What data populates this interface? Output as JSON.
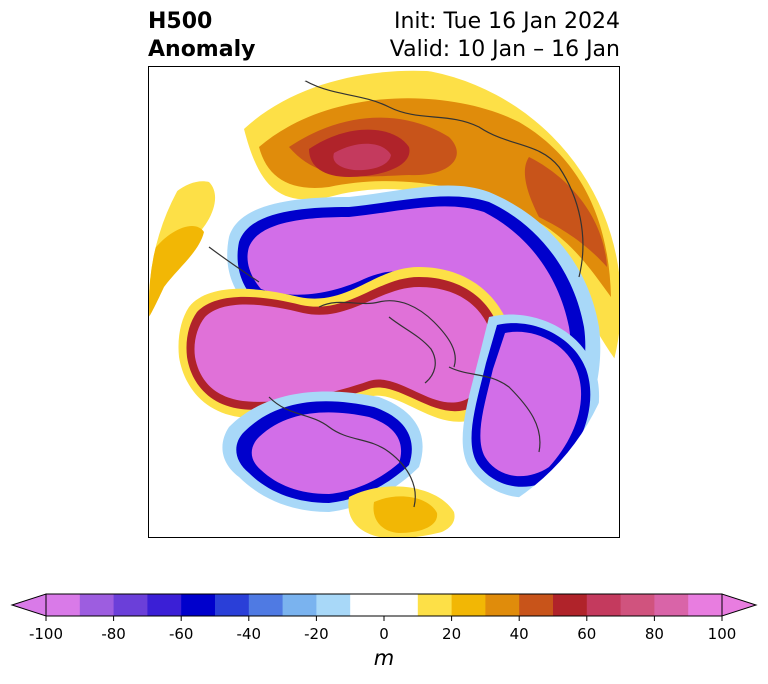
{
  "header": {
    "title_line1": "H500",
    "title_line2": "Anomaly",
    "init_line": "Init: Tue 16 Jan 2024",
    "valid_line": "Valid: 10 Jan – 16 Jan"
  },
  "colorbar": {
    "unit": "m",
    "range": [
      -100,
      100
    ],
    "step": 10,
    "tick_labels": [
      "-100",
      "-80",
      "-60",
      "-40",
      "-20",
      "0",
      "20",
      "40",
      "60",
      "80",
      "100"
    ],
    "colors": [
      "#d97ae8",
      "#9d5de0",
      "#6b3fd9",
      "#3b1fd6",
      "#0000cc",
      "#2a3fd8",
      "#4f7ae3",
      "#7ab3ef",
      "#a8d8f8",
      "#ffffff",
      "#ffffff",
      "#fde047",
      "#f2b705",
      "#e08c0b",
      "#c8541a",
      "#b0232a",
      "#c43a5e",
      "#d0537e",
      "#d964a8",
      "#e87de0"
    ]
  },
  "map": {
    "projection": "north-polar-stereographic",
    "palette": {
      "neg_deep": "#d26ee8",
      "neg_mid": "#0000cc",
      "neg_edge": "#4f7ae3",
      "neg_light": "#a8d8f8",
      "pos_light": "#fde047",
      "pos_mid": "#f2b705",
      "pos_orange": "#e08c0b",
      "pos_rust": "#c8541a",
      "pos_red": "#b0232a",
      "pos_pink": "#c43a5e",
      "pos_magenta": "#e071d8",
      "coast": "#333333"
    }
  }
}
